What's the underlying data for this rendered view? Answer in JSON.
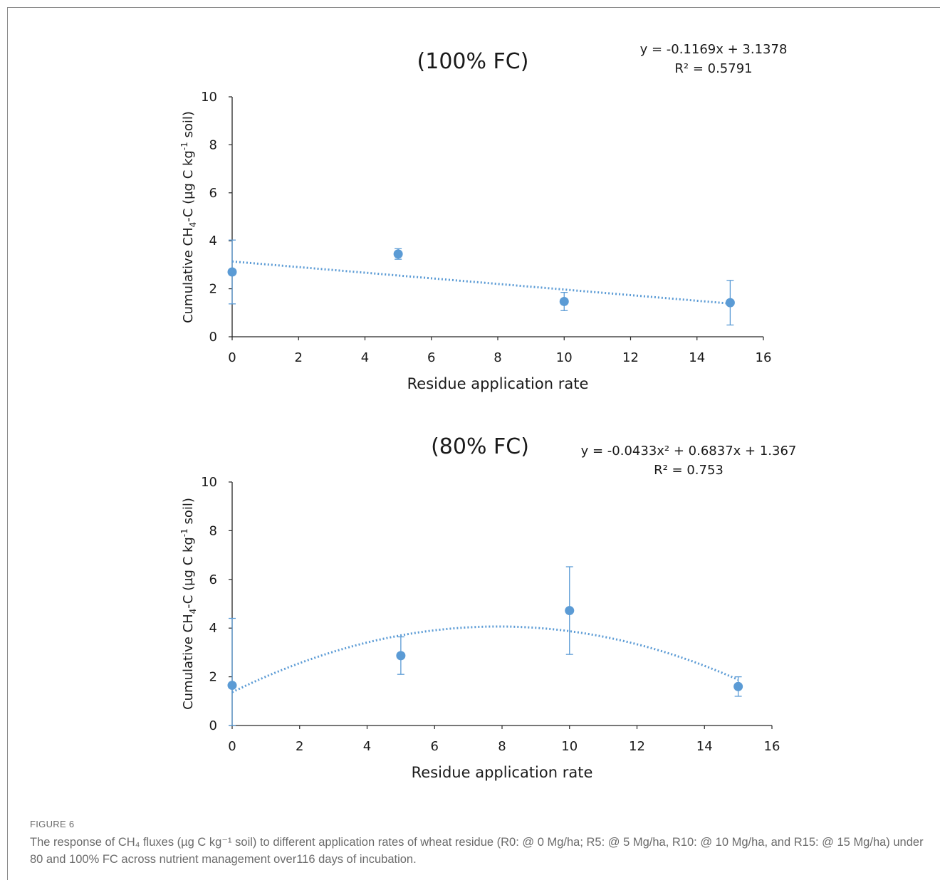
{
  "chart_data": [
    {
      "type": "scatter",
      "title": "(100% FC)",
      "xlabel": "Residue application rate",
      "ylabel_parts": [
        "Cumulative CH",
        "4",
        "-C (µg C kg",
        "-1",
        " soil)"
      ],
      "xlim": [
        0,
        16
      ],
      "ylim": [
        0,
        10
      ],
      "xticks": [
        0,
        2,
        4,
        6,
        8,
        10,
        12,
        14,
        16
      ],
      "yticks": [
        0,
        2,
        4,
        6,
        8,
        10
      ],
      "grid": false,
      "series": [
        {
          "x": [
            0,
            5,
            10,
            15
          ],
          "y": [
            2.7,
            3.45,
            1.47,
            1.42
          ],
          "err": [
            1.33,
            0.22,
            0.38,
            0.93
          ]
        }
      ],
      "trendline": {
        "kind": "linear",
        "coefficients": [
          -0.1169,
          3.1378
        ],
        "equation": "y = -0.1169x + 3.1378",
        "r2": "R² = 0.5791"
      },
      "color": "#5b9bd5"
    },
    {
      "type": "scatter",
      "title": "(80% FC)",
      "xlabel": "Residue application rate",
      "ylabel_parts": [
        "Cumulative CH",
        "4",
        "-C (µg C kg",
        "-1",
        " soil)"
      ],
      "xlim": [
        0,
        16
      ],
      "ylim": [
        0,
        10
      ],
      "xticks": [
        0,
        2,
        4,
        6,
        8,
        10,
        12,
        14,
        16
      ],
      "yticks": [
        0,
        2,
        4,
        6,
        8,
        10
      ],
      "grid": false,
      "series": [
        {
          "x": [
            0,
            5,
            10,
            15
          ],
          "y": [
            1.65,
            2.87,
            4.72,
            1.6
          ],
          "err": [
            2.75,
            0.77,
            1.8,
            0.4
          ]
        }
      ],
      "trendline": {
        "kind": "quadratic",
        "coefficients": [
          -0.0433,
          0.6837,
          1.367
        ],
        "equation": "y = -0.0433x² + 0.6837x + 1.367",
        "r2": "R² = 0.753"
      },
      "color": "#5b9bd5"
    }
  ],
  "caption": {
    "label": "FIGURE 6",
    "text": "The response of CH₄ fluxes (µg C kg⁻¹ soil) to different application rates of wheat residue (R0: @ 0 Mg/ha; R5: @ 5 Mg/ha, R10: @ 10 Mg/ha, and R15: @ 15 Mg/ha) under 80 and 100% FC across nutrient management over116 days of incubation."
  }
}
